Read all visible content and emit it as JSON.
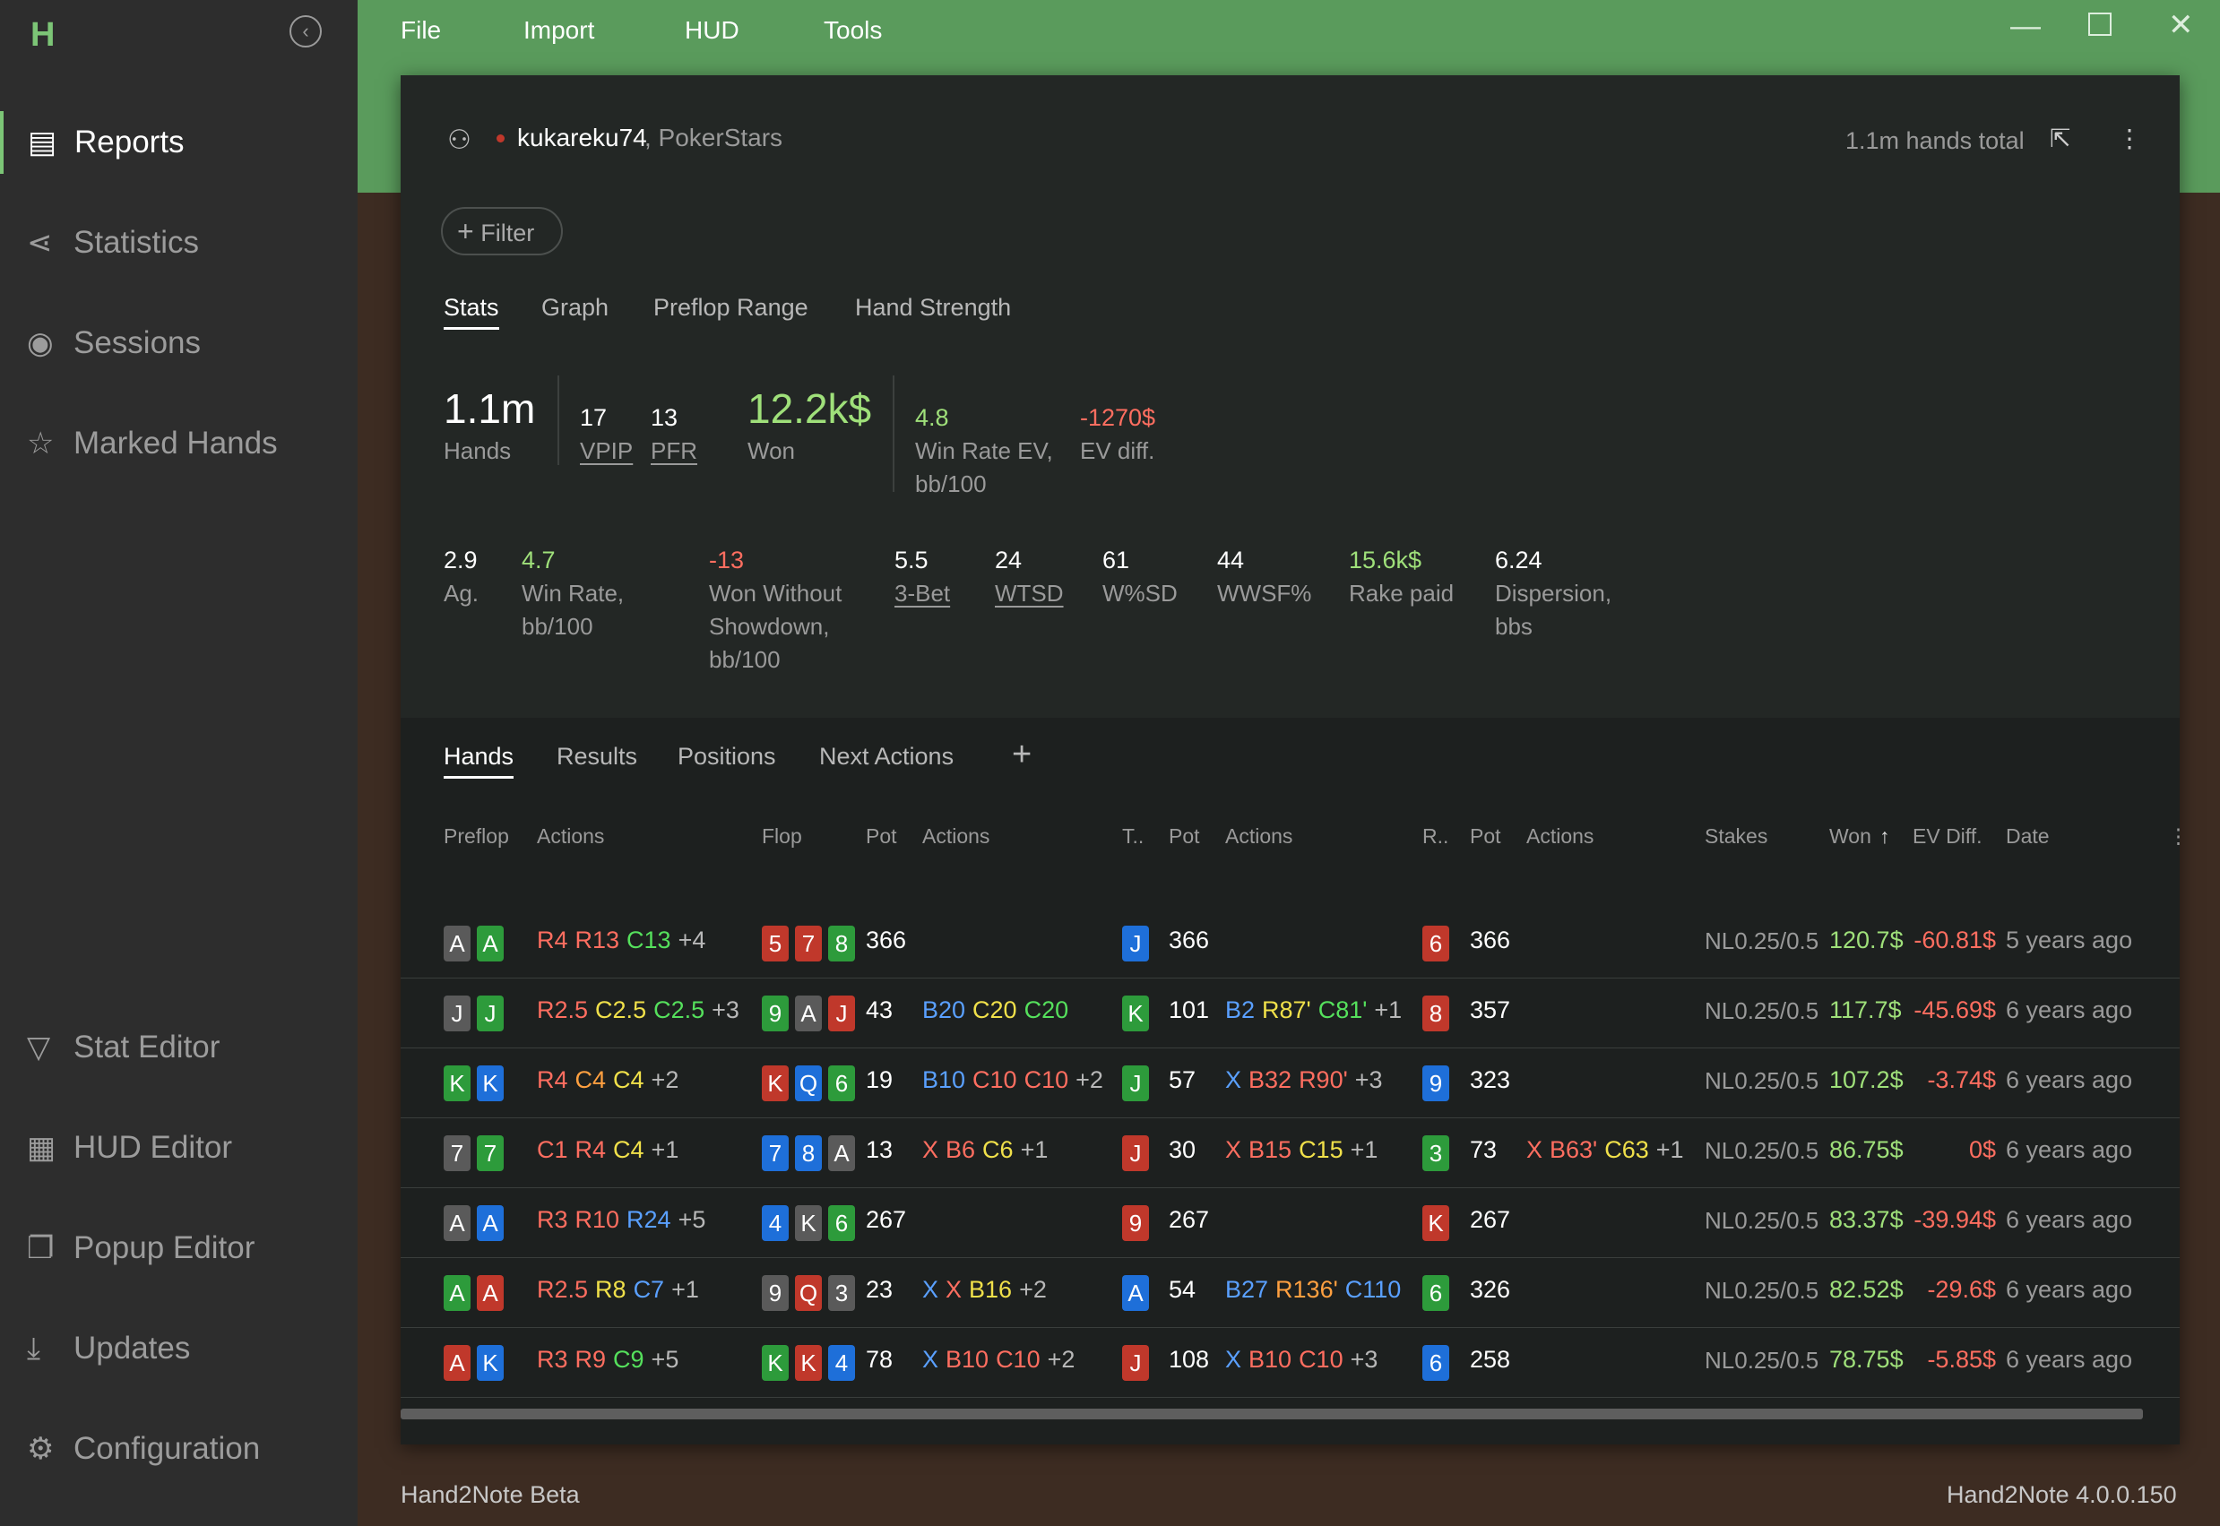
{
  "app": {
    "logo": "H",
    "footer_left": "Hand2Note Beta",
    "footer_right": "Hand2Note 4.0.0.150"
  },
  "sidebar": {
    "top": [
      {
        "label": "Reports",
        "icon": "report-icon"
      },
      {
        "label": "Statistics",
        "icon": "share-icon"
      },
      {
        "label": "Sessions",
        "icon": "broadcast-icon"
      },
      {
        "label": "Marked Hands",
        "icon": "star-list-icon"
      }
    ],
    "bottom": [
      {
        "label": "Stat Editor",
        "icon": "filter-icon"
      },
      {
        "label": "HUD Editor",
        "icon": "layout-icon"
      },
      {
        "label": "Popup Editor",
        "icon": "windows-icon"
      },
      {
        "label": "Updates",
        "icon": "download-icon"
      },
      {
        "label": "Configuration",
        "icon": "gear-icon"
      }
    ]
  },
  "menu": [
    "File",
    "Import",
    "HUD",
    "Tools"
  ],
  "header": {
    "player": "kukareku74",
    "site": ", PokerStars",
    "total": "1.1m hands total",
    "filter": "Filter"
  },
  "tabs": [
    "Stats",
    "Graph",
    "Preflop Range",
    "Hand Strength"
  ],
  "stats": {
    "hands": {
      "v": "1.1m",
      "l": "Hands"
    },
    "vpip": {
      "v": "17",
      "l": "VPIP"
    },
    "pfr": {
      "v": "13",
      "l": "PFR"
    },
    "won": {
      "v": "12.2k$",
      "l": "Won"
    },
    "wrev": {
      "v": "4.8",
      "l": "Win Rate EV,",
      "l2": "bb/100"
    },
    "evdiff": {
      "v": "-1270$",
      "l": "EV diff."
    },
    "ag": {
      "v": "2.9",
      "l": "Ag."
    },
    "wr": {
      "v": "4.7",
      "l": "Win Rate,",
      "l2": "bb/100"
    },
    "wwsd": {
      "v": "-13",
      "l": "Won Without",
      "l2": "Showdown,",
      "l3": "bb/100"
    },
    "threebet": {
      "v": "5.5",
      "l": "3-Bet"
    },
    "wtsd": {
      "v": "24",
      "l": "WTSD"
    },
    "wsd": {
      "v": "61",
      "l": "W%SD"
    },
    "wwsf": {
      "v": "44",
      "l": "WWSF%"
    },
    "rake": {
      "v": "15.6k$",
      "l": "Rake paid"
    },
    "disp": {
      "v": "6.24",
      "l": "Dispersion,",
      "l2": "bbs"
    }
  },
  "subtabs": [
    "Hands",
    "Results",
    "Positions",
    "Next Actions"
  ],
  "columns": {
    "preflop": "Preflop",
    "actions": "Actions",
    "flop": "Flop",
    "pot": "Pot",
    "turn": "T..",
    "river": "R..",
    "stakes": "Stakes",
    "won": "Won",
    "evdiff": "EV Diff.",
    "date": "Date"
  },
  "hands": [
    {
      "cards": [
        [
          "A",
          "s"
        ],
        [
          "A",
          "c"
        ]
      ],
      "pre": [
        [
          "R4",
          "r"
        ],
        [
          "R13",
          "r"
        ],
        [
          "C13",
          "c"
        ],
        [
          "+4",
          "p"
        ]
      ],
      "flop": [
        [
          "5",
          "h"
        ],
        [
          "7",
          "h"
        ],
        [
          "8",
          "c"
        ]
      ],
      "fpot": "366",
      "fact": [],
      "turn": [
        "J",
        "d"
      ],
      "tpot": "366",
      "tact": [],
      "river": [
        "6",
        "h"
      ],
      "rpot": "366",
      "ract": [],
      "stakes": "NL0.25/0.5",
      "won": "120.7$",
      "ev": "-60.81$",
      "date": "5 years ago"
    },
    {
      "cards": [
        [
          "J",
          "s"
        ],
        [
          "J",
          "c"
        ]
      ],
      "pre": [
        [
          "R2.5",
          "r"
        ],
        [
          "C2.5",
          "y"
        ],
        [
          "C2.5",
          "c"
        ],
        [
          "+3",
          "p"
        ]
      ],
      "flop": [
        [
          "9",
          "c"
        ],
        [
          "A",
          "s"
        ],
        [
          "J",
          "h"
        ]
      ],
      "fpot": "43",
      "fact": [
        [
          "B20",
          "b"
        ],
        [
          "C20",
          "y"
        ],
        [
          "C20",
          "c"
        ]
      ],
      "turn": [
        "K",
        "c"
      ],
      "tpot": "101",
      "tact": [
        [
          "B2",
          "b"
        ],
        [
          "R87'",
          "y"
        ],
        [
          "C81'",
          "c"
        ],
        [
          "+1",
          "p"
        ]
      ],
      "river": [
        "8",
        "h"
      ],
      "rpot": "357",
      "ract": [],
      "stakes": "NL0.25/0.5",
      "won": "117.7$",
      "ev": "-45.69$",
      "date": "6 years ago"
    },
    {
      "cards": [
        [
          "K",
          "c"
        ],
        [
          "K",
          "d"
        ]
      ],
      "pre": [
        [
          "R4",
          "r"
        ],
        [
          "C4",
          "o"
        ],
        [
          "C4",
          "y"
        ],
        [
          "+2",
          "p"
        ]
      ],
      "flop": [
        [
          "K",
          "h"
        ],
        [
          "Q",
          "d"
        ],
        [
          "6",
          "c"
        ]
      ],
      "fpot": "19",
      "fact": [
        [
          "B10",
          "b"
        ],
        [
          "C10",
          "r"
        ],
        [
          "C10",
          "r"
        ],
        [
          "+2",
          "p"
        ]
      ],
      "turn": [
        "J",
        "c"
      ],
      "tpot": "57",
      "tact": [
        [
          "X",
          "x"
        ],
        [
          "B32",
          "r"
        ],
        [
          "R90'",
          "r"
        ],
        [
          "+3",
          "p"
        ]
      ],
      "river": [
        "9",
        "d"
      ],
      "rpot": "323",
      "ract": [],
      "stakes": "NL0.25/0.5",
      "won": "107.2$",
      "ev": "-3.74$",
      "date": "6 years ago"
    },
    {
      "cards": [
        [
          "7",
          "s"
        ],
        [
          "7",
          "c"
        ]
      ],
      "pre": [
        [
          "C1",
          "r"
        ],
        [
          "R4",
          "r"
        ],
        [
          "C4",
          "y"
        ],
        [
          "+1",
          "p"
        ]
      ],
      "flop": [
        [
          "7",
          "d"
        ],
        [
          "8",
          "d"
        ],
        [
          "A",
          "s"
        ]
      ],
      "fpot": "13",
      "fact": [
        [
          "X",
          "r"
        ],
        [
          "B6",
          "r"
        ],
        [
          "C6",
          "y"
        ],
        [
          "+1",
          "p"
        ]
      ],
      "turn": [
        "J",
        "h"
      ],
      "tpot": "30",
      "tact": [
        [
          "X",
          "r"
        ],
        [
          "B15",
          "r"
        ],
        [
          "C15",
          "y"
        ],
        [
          "+1",
          "p"
        ]
      ],
      "river": [
        "3",
        "c"
      ],
      "rpot": "73",
      "ract": [
        [
          "X",
          "r"
        ],
        [
          "B63'",
          "r"
        ],
        [
          "C63",
          "y"
        ],
        [
          "+1",
          "p"
        ]
      ],
      "stakes": "NL0.25/0.5",
      "won": "86.75$",
      "ev": "0$",
      "date": "6 years ago"
    },
    {
      "cards": [
        [
          "A",
          "s"
        ],
        [
          "A",
          "d"
        ]
      ],
      "pre": [
        [
          "R3",
          "r"
        ],
        [
          "R10",
          "r"
        ],
        [
          "R24",
          "b"
        ],
        [
          "+5",
          "p"
        ]
      ],
      "flop": [
        [
          "4",
          "d"
        ],
        [
          "K",
          "s"
        ],
        [
          "6",
          "c"
        ]
      ],
      "fpot": "267",
      "fact": [],
      "turn": [
        "9",
        "h"
      ],
      "tpot": "267",
      "tact": [],
      "river": [
        "K",
        "h"
      ],
      "rpot": "267",
      "ract": [],
      "stakes": "NL0.25/0.5",
      "won": "83.37$",
      "ev": "-39.94$",
      "date": "6 years ago"
    },
    {
      "cards": [
        [
          "A",
          "c"
        ],
        [
          "A",
          "h"
        ]
      ],
      "pre": [
        [
          "R2.5",
          "r"
        ],
        [
          "R8",
          "y"
        ],
        [
          "C7",
          "b"
        ],
        [
          "+1",
          "p"
        ]
      ],
      "flop": [
        [
          "9",
          "s"
        ],
        [
          "Q",
          "h"
        ],
        [
          "3",
          "s"
        ]
      ],
      "fpot": "23",
      "fact": [
        [
          "X",
          "x"
        ],
        [
          "X",
          "r"
        ],
        [
          "B16",
          "y"
        ],
        [
          "+2",
          "p"
        ]
      ],
      "turn": [
        "A",
        "d"
      ],
      "tpot": "54",
      "tact": [
        [
          "B27",
          "b"
        ],
        [
          "R136'",
          "o"
        ],
        [
          "C110",
          "b"
        ]
      ],
      "river": [
        "6",
        "c"
      ],
      "rpot": "326",
      "ract": [],
      "stakes": "NL0.25/0.5",
      "won": "82.52$",
      "ev": "-29.6$",
      "date": "6 years ago"
    },
    {
      "cards": [
        [
          "A",
          "h"
        ],
        [
          "K",
          "d"
        ]
      ],
      "pre": [
        [
          "R3",
          "r"
        ],
        [
          "R9",
          "r"
        ],
        [
          "C9",
          "c"
        ],
        [
          "+5",
          "p"
        ]
      ],
      "flop": [
        [
          "K",
          "c"
        ],
        [
          "K",
          "h"
        ],
        [
          "4",
          "d"
        ]
      ],
      "fpot": "78",
      "fact": [
        [
          "X",
          "x"
        ],
        [
          "B10",
          "r"
        ],
        [
          "C10",
          "r"
        ],
        [
          "+2",
          "p"
        ]
      ],
      "turn": [
        "J",
        "h"
      ],
      "tpot": "108",
      "tact": [
        [
          "X",
          "x"
        ],
        [
          "B10",
          "r"
        ],
        [
          "C10",
          "r"
        ],
        [
          "+3",
          "p"
        ]
      ],
      "river": [
        "6",
        "d"
      ],
      "rpot": "258",
      "ract": [],
      "stakes": "NL0.25/0.5",
      "won": "78.75$",
      "ev": "-5.85$",
      "date": "6 years ago"
    }
  ],
  "colors": {
    "accent": "#7cc576",
    "topbar": "#5a9b5c",
    "won": "#9fe07a",
    "loss": "#ff6e60",
    "panel": "#232725"
  }
}
